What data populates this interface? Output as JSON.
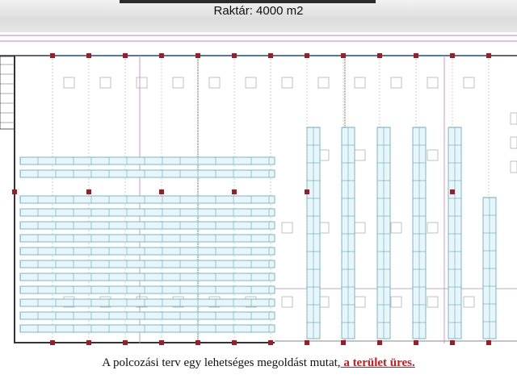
{
  "header": {
    "title": "Raktár: 4000 m2"
  },
  "caption": {
    "text": "A polcozási terv egy lehetséges megoldást mutat,",
    "highlight": " a terület üres."
  },
  "colors": {
    "rack": "#5aa6c0",
    "rack_fill": "#e8f6fa",
    "column": "#a01c24",
    "wall": "#333333",
    "beam": "#3a6fa0",
    "grid": "#c080c0"
  }
}
